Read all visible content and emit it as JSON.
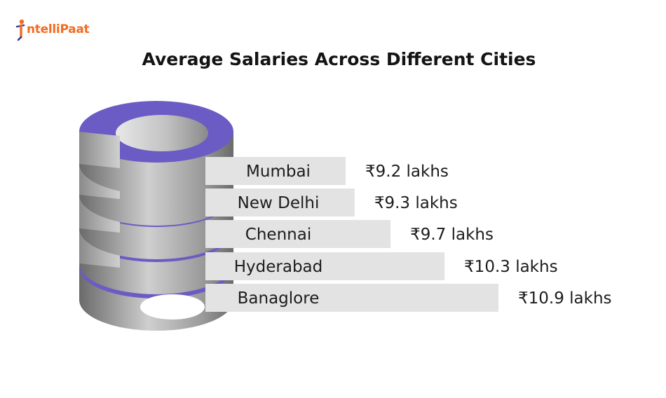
{
  "brand": {
    "name": "IntelliPaat",
    "logo_text": "ntelliPaat",
    "colors": {
      "brand_orange": "#f26c22",
      "brand_blue": "#2b3990"
    }
  },
  "chart_data": {
    "type": "bar",
    "title": "Average Salaries Across Different Cities",
    "categories": [
      "Mumbai",
      "New Delhi",
      "Chennai",
      "Hyderabad",
      "Banaglore"
    ],
    "values": [
      9.2,
      9.3,
      9.7,
      10.3,
      10.9
    ],
    "value_labels": [
      "₹9.2 lakhs",
      "₹9.3 lakhs",
      "₹9.7 lakhs",
      "₹10.3 lakhs",
      "₹10.9 lakhs"
    ],
    "unit": "lakhs",
    "xlabel": "",
    "ylabel": "",
    "legend": "none",
    "grid": false,
    "colors": {
      "bar": "#e3e3e3",
      "ring_top": "#6b5bc4",
      "ring_side_light": "#d4d4d4",
      "ring_side_dark": "#6f6f6f"
    }
  }
}
